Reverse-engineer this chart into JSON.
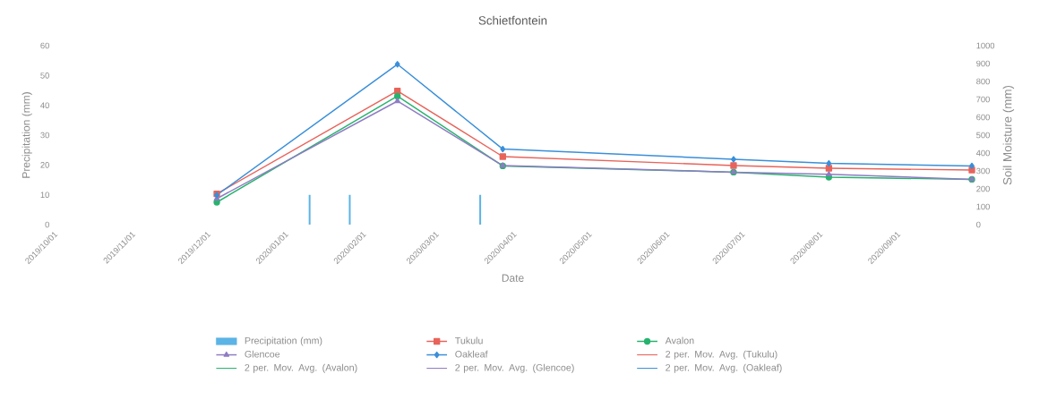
{
  "chart_data": {
    "type": "line",
    "title": "Schietfontein",
    "xlabel": "Date",
    "ylabel": "Precipitation (mm)",
    "y2label": "Soil Moisture (mm)",
    "x": [
      "2019-12-05",
      "2020-02-15",
      "2020-03-28",
      "2020-06-28",
      "2020-08-05",
      "2020-10-01"
    ],
    "series": [
      {
        "name": "Precipitation (mm)",
        "type": "bar",
        "color": "#5bb4e5",
        "x": [
          "2020-01-11",
          "2020-01-27",
          "2020-03-19"
        ],
        "values": [
          10,
          10,
          10
        ]
      },
      {
        "name": "Tukulu",
        "axis": "y2",
        "marker": "square",
        "color": "#e8635a",
        "values": [
          172,
          747,
          380,
          330,
          315,
          305
        ]
      },
      {
        "name": "Avalon",
        "axis": "y2",
        "marker": "circle",
        "color": "#27b36e",
        "values": [
          125,
          718,
          328,
          293,
          265,
          253
        ]
      },
      {
        "name": "Glencoe",
        "axis": "y2",
        "marker": "triangle",
        "color": "#8e7cc3",
        "values": [
          145,
          690,
          330,
          293,
          281,
          253
        ]
      },
      {
        "name": "Oakleaf",
        "axis": "y2",
        "marker": "diamond",
        "color": "#3a8fd9",
        "values": [
          165,
          896,
          422,
          365,
          342,
          328
        ]
      },
      {
        "name": "2 per. Mov. Avg. (Tukulu)",
        "axis": "y2",
        "color": "#e8635a",
        "values": [
          null,
          null,
          null,
          null,
          null,
          null
        ]
      },
      {
        "name": "2 per. Mov. Avg. (Avalon)",
        "axis": "y2",
        "color": "#27b36e",
        "values": [
          null,
          null,
          null,
          null,
          null,
          null
        ]
      },
      {
        "name": "2 per. Mov. Avg. (Glencoe)",
        "axis": "y2",
        "color": "#8e7cc3",
        "values": [
          null,
          null,
          null,
          null,
          null,
          null
        ]
      },
      {
        "name": "2 per. Mov. Avg. (Oakleaf)",
        "axis": "y2",
        "color": "#3a8fd9",
        "values": [
          null,
          null,
          null,
          null,
          null,
          null
        ]
      }
    ],
    "xlim": [
      "2019-10-01",
      "2020-10-01"
    ],
    "xticks": [
      {
        "value": "2019-10-01",
        "label": "2019/10/01"
      },
      {
        "value": "2019-11-01",
        "label": "2019/11/01"
      },
      {
        "value": "2019-12-01",
        "label": "2019/12/01"
      },
      {
        "value": "2020-01-01",
        "label": "2020/01/01"
      },
      {
        "value": "2020-02-01",
        "label": "2020/02/01"
      },
      {
        "value": "2020-03-01",
        "label": "2020/03/01"
      },
      {
        "value": "2020-04-01",
        "label": "2020/04/01"
      },
      {
        "value": "2020-05-01",
        "label": "2020/05/01"
      },
      {
        "value": "2020-06-01",
        "label": "2020/06/01"
      },
      {
        "value": "2020-07-01",
        "label": "2020/07/01"
      },
      {
        "value": "2020-08-01",
        "label": "2020/08/01"
      },
      {
        "value": "2020-09-01",
        "label": "2020/09/01"
      }
    ],
    "ylim": [
      0,
      60
    ],
    "yticks": [
      0,
      10,
      20,
      30,
      40,
      50,
      60
    ],
    "y2lim": [
      0,
      1000
    ],
    "y2ticks": [
      0,
      100,
      200,
      300,
      400,
      500,
      600,
      700,
      800,
      900,
      1000
    ],
    "legend": "bottom",
    "grid": false,
    "line_style": "solid"
  }
}
